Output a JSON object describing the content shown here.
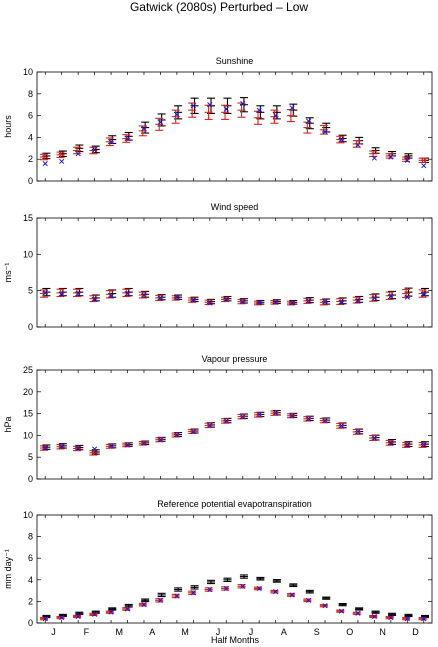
{
  "figure_title": "Gatwick (2080s) Perturbed – Low",
  "x_axis_label": "Half Months",
  "month_labels": [
    "J",
    "F",
    "M",
    "A",
    "M",
    "J",
    "J",
    "A",
    "S",
    "O",
    "N",
    "D"
  ],
  "colors": {
    "observed": "#000000",
    "perturbed": "#e0201b",
    "marker": "#1a1ad8"
  },
  "chart_data": [
    {
      "type": "errorbar",
      "title": "Sunshine",
      "ylabel": "hours",
      "ylim": [
        0,
        10
      ],
      "yticks": [
        0,
        2,
        4,
        6,
        8,
        10
      ],
      "x": [
        1,
        2,
        3,
        4,
        5,
        6,
        7,
        8,
        9,
        10,
        11,
        12,
        13,
        14,
        15,
        16,
        17,
        18,
        19,
        20,
        21,
        22,
        23,
        24
      ],
      "series": [
        {
          "role": "observed-mean",
          "values": [
            2.3,
            2.5,
            3.0,
            2.9,
            3.8,
            4.1,
            4.9,
            5.6,
            6.3,
            6.9,
            6.9,
            6.9,
            7.0,
            6.3,
            6.3,
            6.5,
            5.3,
            4.9,
            3.9,
            3.7,
            2.8,
            2.5,
            2.3,
            1.9
          ],
          "err": [
            0.25,
            0.25,
            0.3,
            0.3,
            0.35,
            0.35,
            0.5,
            0.55,
            0.6,
            0.7,
            0.7,
            0.7,
            0.65,
            0.6,
            0.6,
            0.55,
            0.5,
            0.4,
            0.3,
            0.3,
            0.25,
            0.2,
            0.2,
            0.2
          ]
        },
        {
          "role": "perturbed-mean",
          "values": [
            2.2,
            2.4,
            2.8,
            2.8,
            3.6,
            3.9,
            4.6,
            5.2,
            5.9,
            6.5,
            6.3,
            6.3,
            6.5,
            5.8,
            5.9,
            6.0,
            4.9,
            4.7,
            3.8,
            3.4,
            2.5,
            2.3,
            2.0,
            1.9
          ],
          "err": [
            0.25,
            0.25,
            0.3,
            0.3,
            0.35,
            0.35,
            0.45,
            0.55,
            0.6,
            0.65,
            0.65,
            0.65,
            0.65,
            0.6,
            0.6,
            0.55,
            0.5,
            0.4,
            0.3,
            0.3,
            0.25,
            0.2,
            0.2,
            0.2
          ]
        },
        {
          "role": "marker",
          "values": [
            1.6,
            1.8,
            2.5,
            2.9,
            3.6,
            3.9,
            4.8,
            5.4,
            6.1,
            6.9,
            7.0,
            6.6,
            7.1,
            6.5,
            6.0,
            6.7,
            5.5,
            4.5,
            3.8,
            3.3,
            2.1,
            2.2,
            1.9,
            1.4
          ]
        }
      ]
    },
    {
      "type": "errorbar",
      "title": "Wind speed",
      "ylabel": "ms⁻¹",
      "ylim": [
        0,
        15
      ],
      "yticks": [
        0,
        5,
        10,
        15
      ],
      "x": [
        1,
        2,
        3,
        4,
        5,
        6,
        7,
        8,
        9,
        10,
        11,
        12,
        13,
        14,
        15,
        16,
        17,
        18,
        19,
        20,
        21,
        22,
        23,
        24
      ],
      "series": [
        {
          "role": "observed-mean",
          "values": [
            4.8,
            4.8,
            4.8,
            4.0,
            4.6,
            4.8,
            4.5,
            4.1,
            4.1,
            3.8,
            3.5,
            3.9,
            3.6,
            3.4,
            3.5,
            3.4,
            3.7,
            3.5,
            3.6,
            3.8,
            4.1,
            4.4,
            4.8,
            4.8
          ],
          "err": [
            0.5,
            0.5,
            0.5,
            0.4,
            0.5,
            0.5,
            0.4,
            0.35,
            0.3,
            0.3,
            0.3,
            0.3,
            0.3,
            0.25,
            0.25,
            0.25,
            0.35,
            0.35,
            0.4,
            0.4,
            0.45,
            0.5,
            0.55,
            0.5
          ]
        },
        {
          "role": "perturbed-mean",
          "values": [
            4.6,
            4.7,
            4.7,
            3.9,
            4.5,
            4.7,
            4.4,
            4.0,
            4.0,
            3.7,
            3.4,
            3.8,
            3.5,
            3.3,
            3.4,
            3.3,
            3.6,
            3.4,
            3.5,
            3.7,
            4.0,
            4.3,
            4.6,
            4.6
          ],
          "err": [
            0.5,
            0.5,
            0.5,
            0.4,
            0.5,
            0.5,
            0.4,
            0.35,
            0.3,
            0.3,
            0.3,
            0.3,
            0.3,
            0.25,
            0.25,
            0.25,
            0.35,
            0.35,
            0.4,
            0.4,
            0.45,
            0.5,
            0.55,
            0.5
          ]
        },
        {
          "role": "marker",
          "values": [
            4.7,
            4.5,
            4.6,
            3.8,
            4.3,
            4.6,
            4.4,
            4.0,
            4.1,
            3.7,
            3.3,
            3.8,
            3.5,
            3.4,
            3.4,
            3.3,
            3.6,
            3.5,
            3.4,
            3.6,
            4.0,
            4.2,
            4.1,
            4.5
          ]
        }
      ]
    },
    {
      "type": "errorbar",
      "title": "Vapour pressure",
      "ylabel": "hPa",
      "ylim": [
        0,
        25
      ],
      "yticks": [
        0,
        5,
        10,
        15,
        20,
        25
      ],
      "x": [
        1,
        2,
        3,
        4,
        5,
        6,
        7,
        8,
        9,
        10,
        11,
        12,
        13,
        14,
        15,
        16,
        17,
        18,
        19,
        20,
        21,
        22,
        23,
        24
      ],
      "series": [
        {
          "role": "observed-mean",
          "values": [
            7.3,
            7.6,
            7.2,
            6.2,
            7.6,
            7.9,
            8.3,
            9.1,
            10.2,
            11.0,
            12.4,
            13.4,
            14.4,
            14.8,
            15.2,
            14.6,
            13.9,
            13.5,
            12.3,
            10.9,
            9.5,
            8.5,
            8.0,
            8.0
          ],
          "err": [
            0.5,
            0.5,
            0.5,
            0.5,
            0.45,
            0.4,
            0.4,
            0.45,
            0.45,
            0.45,
            0.5,
            0.5,
            0.5,
            0.5,
            0.5,
            0.45,
            0.5,
            0.5,
            0.55,
            0.55,
            0.55,
            0.55,
            0.55,
            0.55
          ]
        },
        {
          "role": "perturbed-mean",
          "values": [
            7.1,
            7.4,
            7.0,
            6.0,
            7.5,
            7.8,
            8.2,
            9.0,
            10.1,
            10.9,
            12.3,
            13.3,
            14.3,
            14.7,
            15.1,
            14.5,
            13.8,
            13.4,
            12.2,
            10.8,
            9.4,
            8.3,
            7.8,
            7.8
          ],
          "err": [
            0.5,
            0.5,
            0.5,
            0.5,
            0.45,
            0.4,
            0.4,
            0.45,
            0.45,
            0.45,
            0.5,
            0.5,
            0.5,
            0.5,
            0.5,
            0.45,
            0.5,
            0.5,
            0.55,
            0.55,
            0.55,
            0.55,
            0.55,
            0.55
          ]
        },
        {
          "role": "marker",
          "values": [
            7.1,
            7.5,
            7.0,
            6.9,
            7.6,
            7.8,
            8.2,
            9.0,
            10.1,
            10.9,
            12.3,
            13.3,
            14.3,
            14.8,
            15.2,
            14.5,
            13.8,
            13.4,
            12.2,
            10.9,
            9.4,
            8.2,
            7.8,
            7.9
          ]
        }
      ]
    },
    {
      "type": "errorbar",
      "title": "Reference potential evapotranspiration",
      "ylabel": "mm day⁻¹",
      "ylim": [
        0,
        10
      ],
      "yticks": [
        0,
        2,
        4,
        6,
        8,
        10
      ],
      "x": [
        1,
        2,
        3,
        4,
        5,
        6,
        7,
        8,
        9,
        10,
        11,
        12,
        13,
        14,
        15,
        16,
        17,
        18,
        19,
        20,
        21,
        22,
        23,
        24
      ],
      "series": [
        {
          "role": "observed-mean",
          "values": [
            0.6,
            0.7,
            0.9,
            1.0,
            1.3,
            1.6,
            2.1,
            2.6,
            3.1,
            3.3,
            3.8,
            4.0,
            4.3,
            4.1,
            3.9,
            3.5,
            2.9,
            2.3,
            1.7,
            1.3,
            1.0,
            0.8,
            0.7,
            0.6
          ],
          "err": [
            0.1,
            0.1,
            0.1,
            0.1,
            0.1,
            0.12,
            0.12,
            0.15,
            0.15,
            0.15,
            0.15,
            0.15,
            0.15,
            0.12,
            0.12,
            0.12,
            0.12,
            0.1,
            0.1,
            0.1,
            0.1,
            0.1,
            0.1,
            0.1
          ]
        },
        {
          "role": "perturbed-mean",
          "values": [
            0.4,
            0.5,
            0.6,
            0.8,
            1.0,
            1.3,
            1.7,
            2.1,
            2.5,
            2.8,
            3.1,
            3.2,
            3.4,
            3.2,
            2.9,
            2.6,
            2.1,
            1.6,
            1.1,
            0.9,
            0.6,
            0.5,
            0.4,
            0.4
          ],
          "err": [
            0.1,
            0.1,
            0.1,
            0.1,
            0.1,
            0.12,
            0.12,
            0.15,
            0.15,
            0.15,
            0.15,
            0.15,
            0.15,
            0.12,
            0.12,
            0.12,
            0.12,
            0.1,
            0.1,
            0.1,
            0.1,
            0.1,
            0.1,
            0.1
          ]
        },
        {
          "role": "marker",
          "values": [
            0.4,
            0.5,
            0.6,
            0.8,
            1.0,
            1.3,
            1.7,
            2.1,
            2.5,
            2.8,
            3.1,
            3.2,
            3.4,
            3.2,
            2.9,
            2.6,
            2.1,
            1.6,
            1.1,
            0.9,
            0.6,
            0.5,
            0.4,
            0.4
          ]
        }
      ]
    }
  ]
}
